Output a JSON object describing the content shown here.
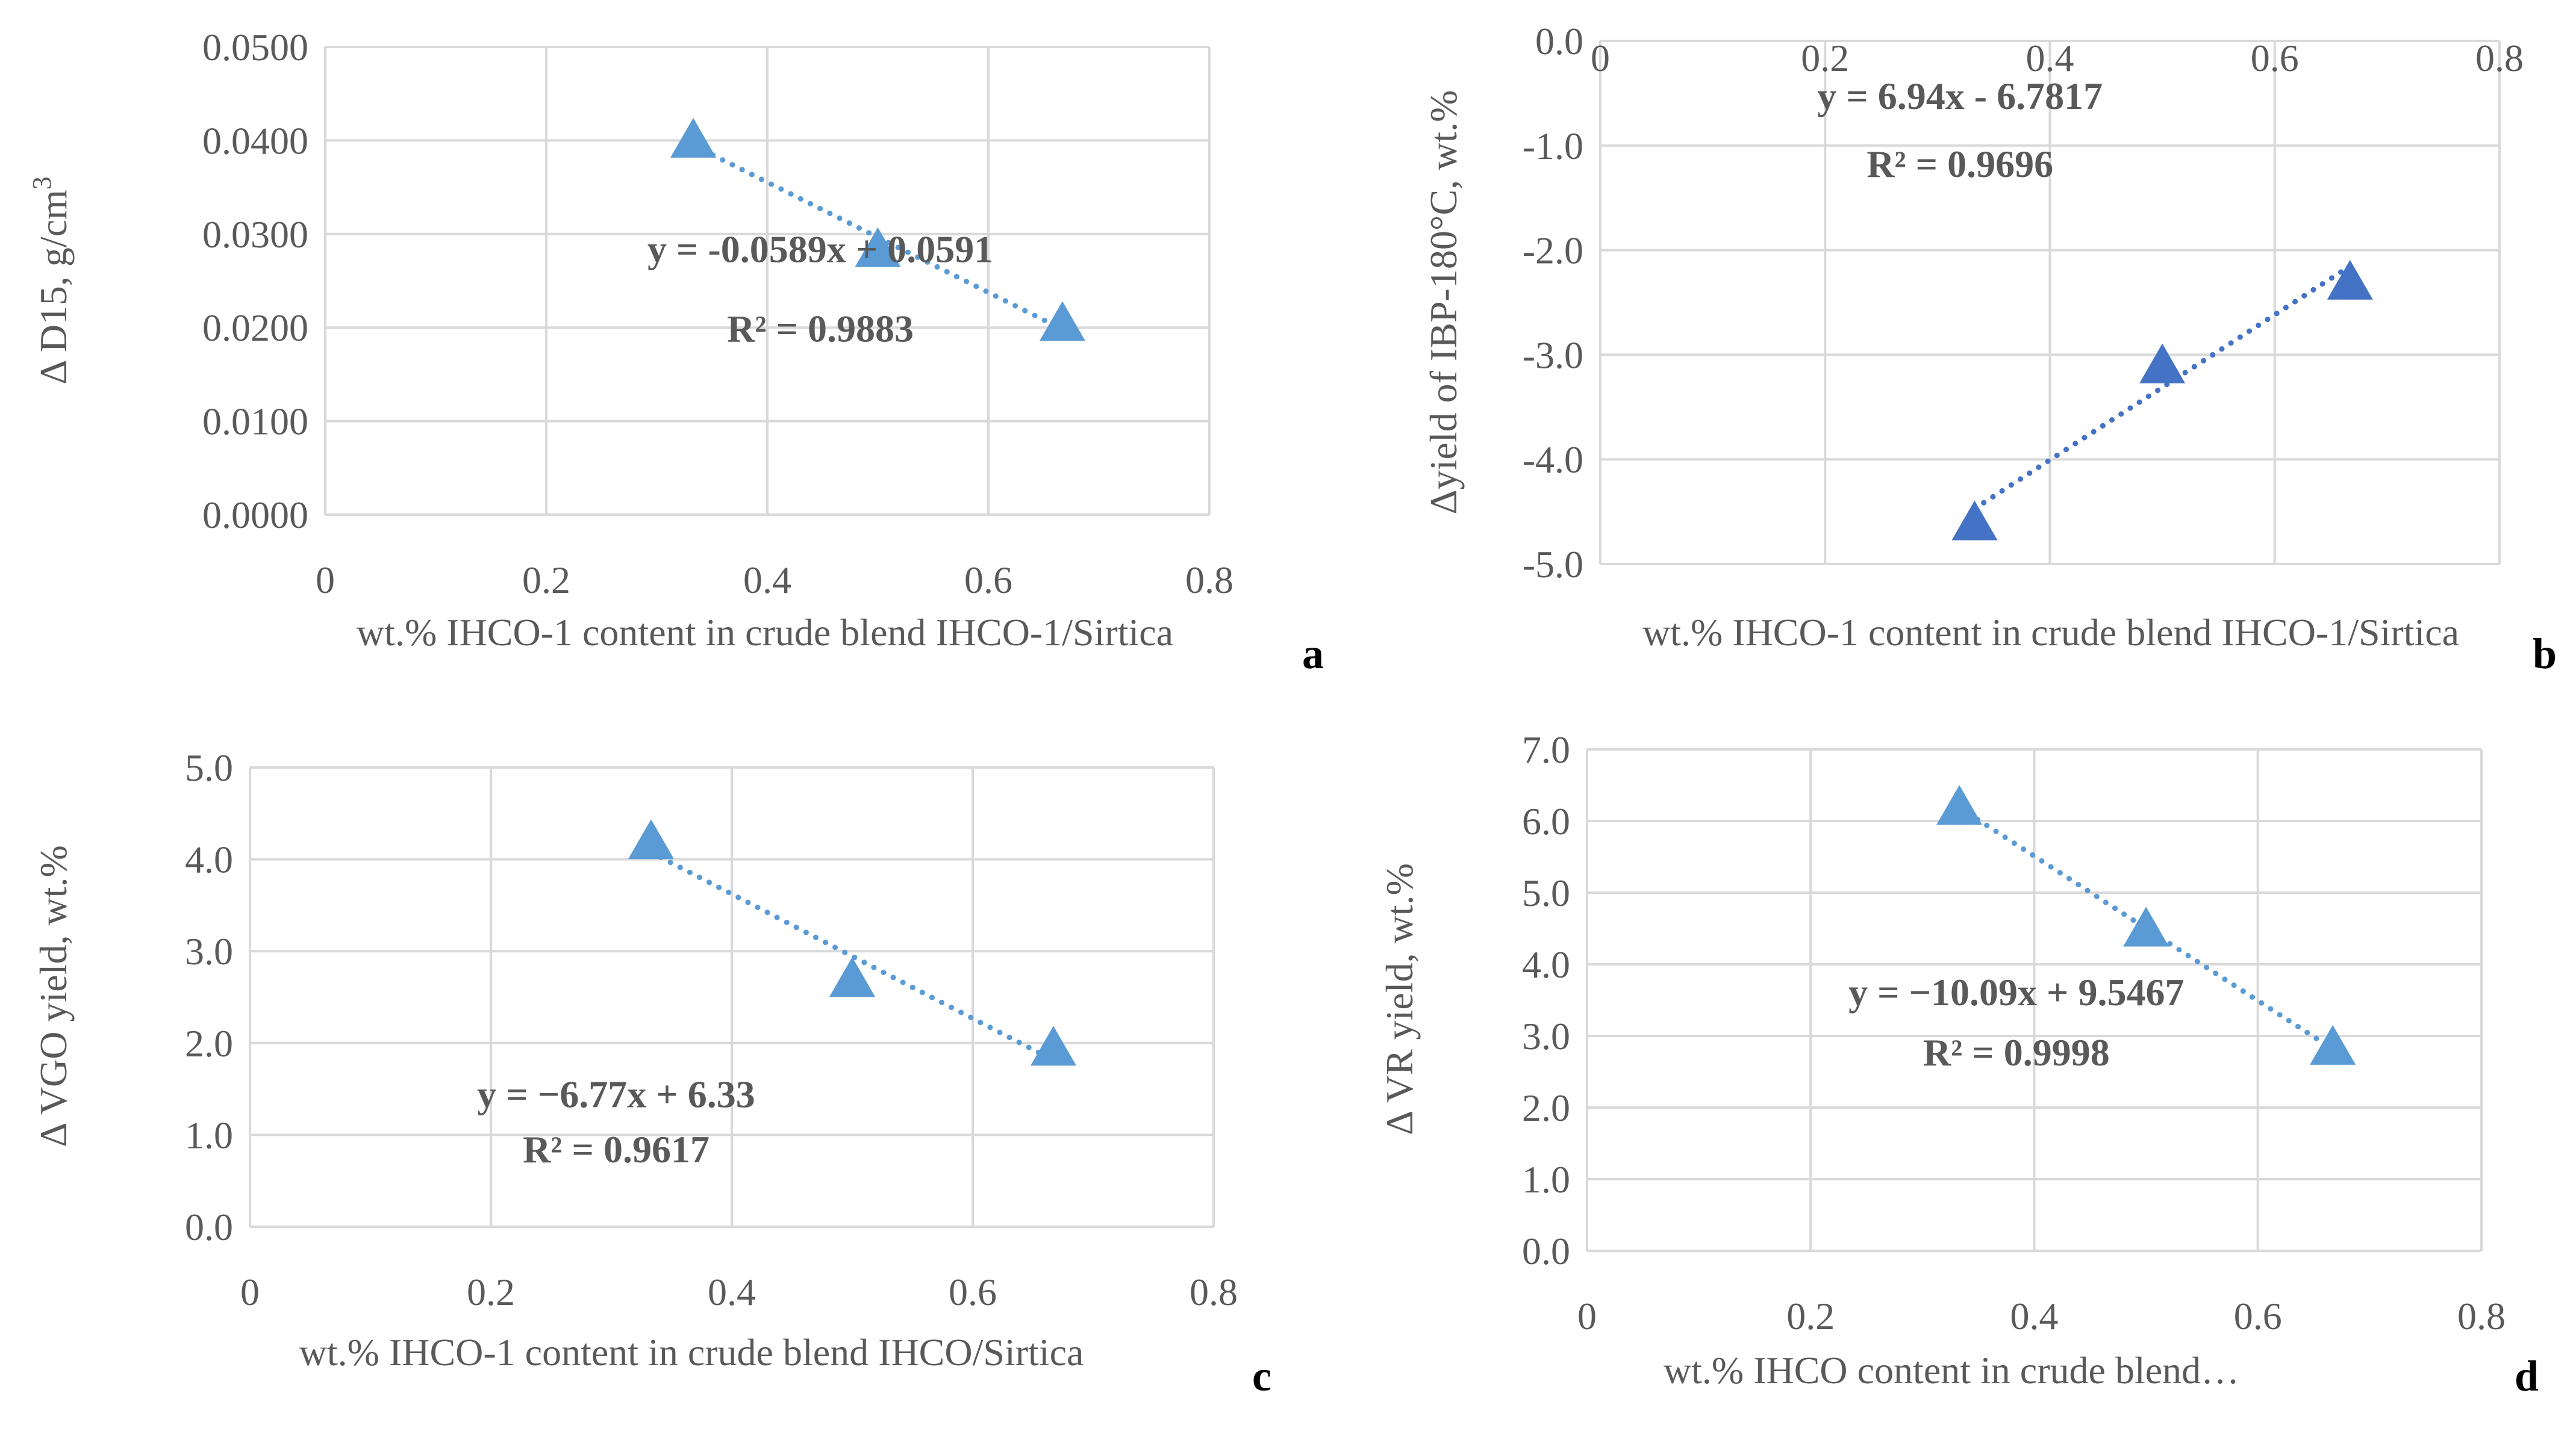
{
  "chart_data": [
    {
      "id": "a",
      "type": "scatter",
      "panel_label": "a",
      "xlabel": "wt.% IHCO-1 content in crude blend IHCO-1/Sirtica",
      "ylabel": "Δ D15, g/cm",
      "ylabel_superscript": "3",
      "xlim": [
        0,
        0.8
      ],
      "ylim": [
        0,
        0.05
      ],
      "x_ticks": [
        0,
        0.2,
        0.4,
        0.6,
        0.8
      ],
      "x_tick_labels": [
        "0",
        "0.2",
        "0.4",
        "0.6",
        "0.8"
      ],
      "y_ticks": [
        0,
        0.01,
        0.02,
        0.03,
        0.04,
        0.05
      ],
      "y_tick_labels": [
        "0.0000",
        "0.0100",
        "0.0200",
        "0.0300",
        "0.0400",
        "0.0500"
      ],
      "x_axis_at_top": false,
      "grid": true,
      "marker": "triangle",
      "marker_color": "#5b9bd5",
      "points": [
        {
          "x": 0.333,
          "y": 0.0401
        },
        {
          "x": 0.5,
          "y": 0.0284
        },
        {
          "x": 0.667,
          "y": 0.0205
        }
      ],
      "trendline": {
        "type": "linear",
        "slope": -0.0589,
        "intercept": 0.0591,
        "x_range": [
          0.333,
          0.667
        ]
      },
      "equation": "y = -0.0589x + 0.0591",
      "r_squared": "R² = 0.9883"
    },
    {
      "id": "b",
      "type": "scatter",
      "panel_label": "b",
      "xlabel": "wt.% IHCO-1 content in crude blend IHCO-1/Sirtica",
      "ylabel": "Δyield of IBP-180°C, wt.%",
      "ylabel_superscript": "",
      "xlim": [
        0,
        0.8
      ],
      "ylim": [
        -5,
        0
      ],
      "x_ticks": [
        0,
        0.2,
        0.4,
        0.6,
        0.8
      ],
      "x_tick_labels": [
        "0",
        "0.2",
        "0.4",
        "0.6",
        "0.8"
      ],
      "y_ticks": [
        -5,
        -4,
        -3,
        -2,
        -1,
        0
      ],
      "y_tick_labels": [
        "-5.0",
        "-4.0",
        "-3.0",
        "-2.0",
        "-1.0",
        "0.0"
      ],
      "x_axis_at_top": true,
      "grid": true,
      "marker": "triangle",
      "marker_color": "#4472c4",
      "points": [
        {
          "x": 0.333,
          "y": -4.6
        },
        {
          "x": 0.5,
          "y": -3.1
        },
        {
          "x": 0.667,
          "y": -2.3
        }
      ],
      "trendline": {
        "type": "linear",
        "slope": 6.94,
        "intercept": -6.7817,
        "x_range": [
          0.333,
          0.667
        ]
      },
      "equation": "y = 6.94x - 6.7817",
      "r_squared": "R² = 0.9696"
    },
    {
      "id": "c",
      "type": "scatter",
      "panel_label": "c",
      "xlabel": "wt.% IHCO-1 content in crude blend IHCO/Sirtica",
      "ylabel": "Δ VGO yield, wt.%",
      "ylabel_superscript": "",
      "xlim": [
        0,
        0.8
      ],
      "ylim": [
        0,
        5
      ],
      "x_ticks": [
        0,
        0.2,
        0.4,
        0.6,
        0.8
      ],
      "x_tick_labels": [
        "0",
        "0.2",
        "0.4",
        "0.6",
        "0.8"
      ],
      "y_ticks": [
        0,
        1,
        2,
        3,
        4,
        5
      ],
      "y_tick_labels": [
        "0.0",
        "1.0",
        "2.0",
        "3.0",
        "4.0",
        "5.0"
      ],
      "x_axis_at_top": false,
      "grid": true,
      "marker": "triangle",
      "marker_color": "#5b9bd5",
      "points": [
        {
          "x": 0.333,
          "y": 4.2
        },
        {
          "x": 0.5,
          "y": 2.7
        },
        {
          "x": 0.667,
          "y": 1.95
        }
      ],
      "trendline": {
        "type": "linear",
        "slope": -6.77,
        "intercept": 6.33,
        "x_range": [
          0.333,
          0.667
        ]
      },
      "equation": "y = −6.77x + 6.33",
      "r_squared": "R² = 0.9617"
    },
    {
      "id": "d",
      "type": "scatter",
      "panel_label": "d",
      "xlabel": "wt.% IHCO content in crude blend…",
      "ylabel": "Δ VR yield, wt.%",
      "ylabel_superscript": "",
      "xlim": [
        0,
        0.8
      ],
      "ylim": [
        0,
        7
      ],
      "x_ticks": [
        0,
        0.2,
        0.4,
        0.6,
        0.8
      ],
      "x_tick_labels": [
        "0",
        "0.2",
        "0.4",
        "0.6",
        "0.8"
      ],
      "y_ticks": [
        0,
        1,
        2,
        3,
        4,
        5,
        6,
        7
      ],
      "y_tick_labels": [
        "0.0",
        "1.0",
        "2.0",
        "3.0",
        "4.0",
        "5.0",
        "6.0",
        "7.0"
      ],
      "x_axis_at_top": false,
      "grid": true,
      "marker": "triangle",
      "marker_color": "#5b9bd5",
      "points": [
        {
          "x": 0.333,
          "y": 6.2
        },
        {
          "x": 0.5,
          "y": 4.5
        },
        {
          "x": 0.667,
          "y": 2.85
        }
      ],
      "trendline": {
        "type": "linear",
        "slope": -10.09,
        "intercept": 9.5467,
        "x_range": [
          0.333,
          0.667
        ]
      },
      "equation": "y = −10.09x + 9.5467",
      "r_squared": "R² = 0.9998"
    }
  ]
}
